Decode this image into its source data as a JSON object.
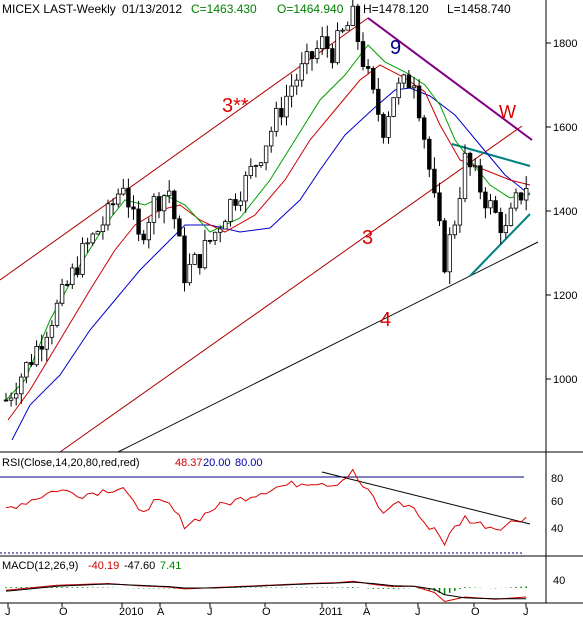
{
  "header": {
    "symbol": "MICEX LAST-Weekly",
    "date": "01/13/2012",
    "close": "C=1463.430",
    "open": "O=1464.940",
    "high": "H=1478.120",
    "low": "L=1458.740"
  },
  "rsi_panel": {
    "label": "RSI(Close,14,20,80,red,red)",
    "value": "48.37",
    "low": "20.00",
    "high": "80.00",
    "ticks": [
      "80",
      "60",
      "40"
    ]
  },
  "macd_panel": {
    "label": "MACD(12,26,9)",
    "macd": "-40.19",
    "signal": "-47.60",
    "hist": "7.41",
    "ticks": [
      "40"
    ]
  },
  "annotations": {
    "wave_3star": "3**",
    "wave_9": "9",
    "wave_w": "W",
    "wave_3": "3",
    "wave_4": "4"
  },
  "colors": {
    "price_bars": "#000000",
    "sma_fast": "#00a000",
    "sma_mid": "#cc0000",
    "sma_slow": "#0000cc",
    "channel": "#aa0000",
    "wedge": "#008080",
    "resistance": "#800080",
    "wave_labels": "#dd0000",
    "wave_9": "#000080",
    "rsi_line": "#dd0000",
    "rsi_level_line": "#000080"
  },
  "chart_data": {
    "type": "candlestick",
    "ylim": [
      800,
      1880
    ],
    "y_ticks": [
      1000,
      1200,
      1400,
      1600,
      1800
    ],
    "x_ticks": [
      "J",
      "O",
      "2010",
      "A",
      "J",
      "O",
      "2011",
      "A",
      "J",
      "O",
      "J"
    ],
    "close_path": [
      [
        0,
        950
      ],
      [
        5,
        1050
      ],
      [
        10,
        1170
      ],
      [
        15,
        1300
      ],
      [
        20,
        1390
      ],
      [
        23,
        1470
      ],
      [
        26,
        1330
      ],
      [
        29,
        1420
      ],
      [
        32,
        1450
      ],
      [
        35,
        1250
      ],
      [
        38,
        1290
      ],
      [
        41,
        1350
      ],
      [
        44,
        1420
      ],
      [
        47,
        1470
      ],
      [
        50,
        1540
      ],
      [
        53,
        1620
      ],
      [
        56,
        1700
      ],
      [
        59,
        1750
      ],
      [
        62,
        1800
      ],
      [
        64,
        1780
      ],
      [
        66,
        1820
      ],
      [
        68,
        1860
      ],
      [
        70,
        1760
      ],
      [
        72,
        1670
      ],
      [
        74,
        1600
      ],
      [
        76,
        1680
      ],
      [
        78,
        1700
      ],
      [
        80,
        1720
      ],
      [
        82,
        1580
      ],
      [
        84,
        1420
      ],
      [
        86,
        1280
      ],
      [
        88,
        1380
      ],
      [
        90,
        1520
      ],
      [
        92,
        1480
      ],
      [
        94,
        1430
      ],
      [
        96,
        1390
      ],
      [
        98,
        1350
      ],
      [
        100,
        1420
      ],
      [
        102,
        1463
      ]
    ],
    "rsi_path": [
      [
        0,
        55
      ],
      [
        5,
        62
      ],
      [
        10,
        70
      ],
      [
        15,
        66
      ],
      [
        20,
        70
      ],
      [
        23,
        72
      ],
      [
        26,
        52
      ],
      [
        29,
        60
      ],
      [
        32,
        58
      ],
      [
        35,
        42
      ],
      [
        38,
        48
      ],
      [
        41,
        56
      ],
      [
        44,
        60
      ],
      [
        47,
        64
      ],
      [
        50,
        68
      ],
      [
        53,
        72
      ],
      [
        56,
        74
      ],
      [
        59,
        76
      ],
      [
        62,
        76
      ],
      [
        64,
        74
      ],
      [
        66,
        78
      ],
      [
        68,
        84
      ],
      [
        70,
        72
      ],
      [
        72,
        64
      ],
      [
        74,
        50
      ],
      [
        76,
        60
      ],
      [
        78,
        58
      ],
      [
        80,
        56
      ],
      [
        82,
        42
      ],
      [
        84,
        40
      ],
      [
        86,
        28
      ],
      [
        88,
        40
      ],
      [
        90,
        48
      ],
      [
        92,
        44
      ],
      [
        94,
        42
      ],
      [
        96,
        40
      ],
      [
        98,
        42
      ],
      [
        100,
        46
      ],
      [
        102,
        48.37
      ]
    ],
    "rsi_levels": [
      20,
      80
    ],
    "macd_path": [
      [
        0,
        -10
      ],
      [
        10,
        12
      ],
      [
        20,
        20
      ],
      [
        26,
        10
      ],
      [
        32,
        4
      ],
      [
        35,
        -4
      ],
      [
        41,
        2
      ],
      [
        47,
        8
      ],
      [
        53,
        14
      ],
      [
        59,
        20
      ],
      [
        65,
        24
      ],
      [
        68,
        30
      ],
      [
        72,
        16
      ],
      [
        76,
        6
      ],
      [
        80,
        8
      ],
      [
        84,
        -20
      ],
      [
        86,
        -60
      ],
      [
        90,
        -40
      ],
      [
        96,
        -50
      ],
      [
        102,
        -40.19
      ]
    ],
    "signal_path": [
      [
        0,
        -14
      ],
      [
        10,
        8
      ],
      [
        20,
        18
      ],
      [
        26,
        12
      ],
      [
        32,
        6
      ],
      [
        35,
        0
      ],
      [
        41,
        0
      ],
      [
        47,
        6
      ],
      [
        53,
        12
      ],
      [
        59,
        18
      ],
      [
        65,
        22
      ],
      [
        68,
        26
      ],
      [
        72,
        20
      ],
      [
        76,
        10
      ],
      [
        80,
        8
      ],
      [
        84,
        -6
      ],
      [
        86,
        -30
      ],
      [
        90,
        -44
      ],
      [
        96,
        -48
      ],
      [
        102,
        -47.6
      ]
    ]
  }
}
